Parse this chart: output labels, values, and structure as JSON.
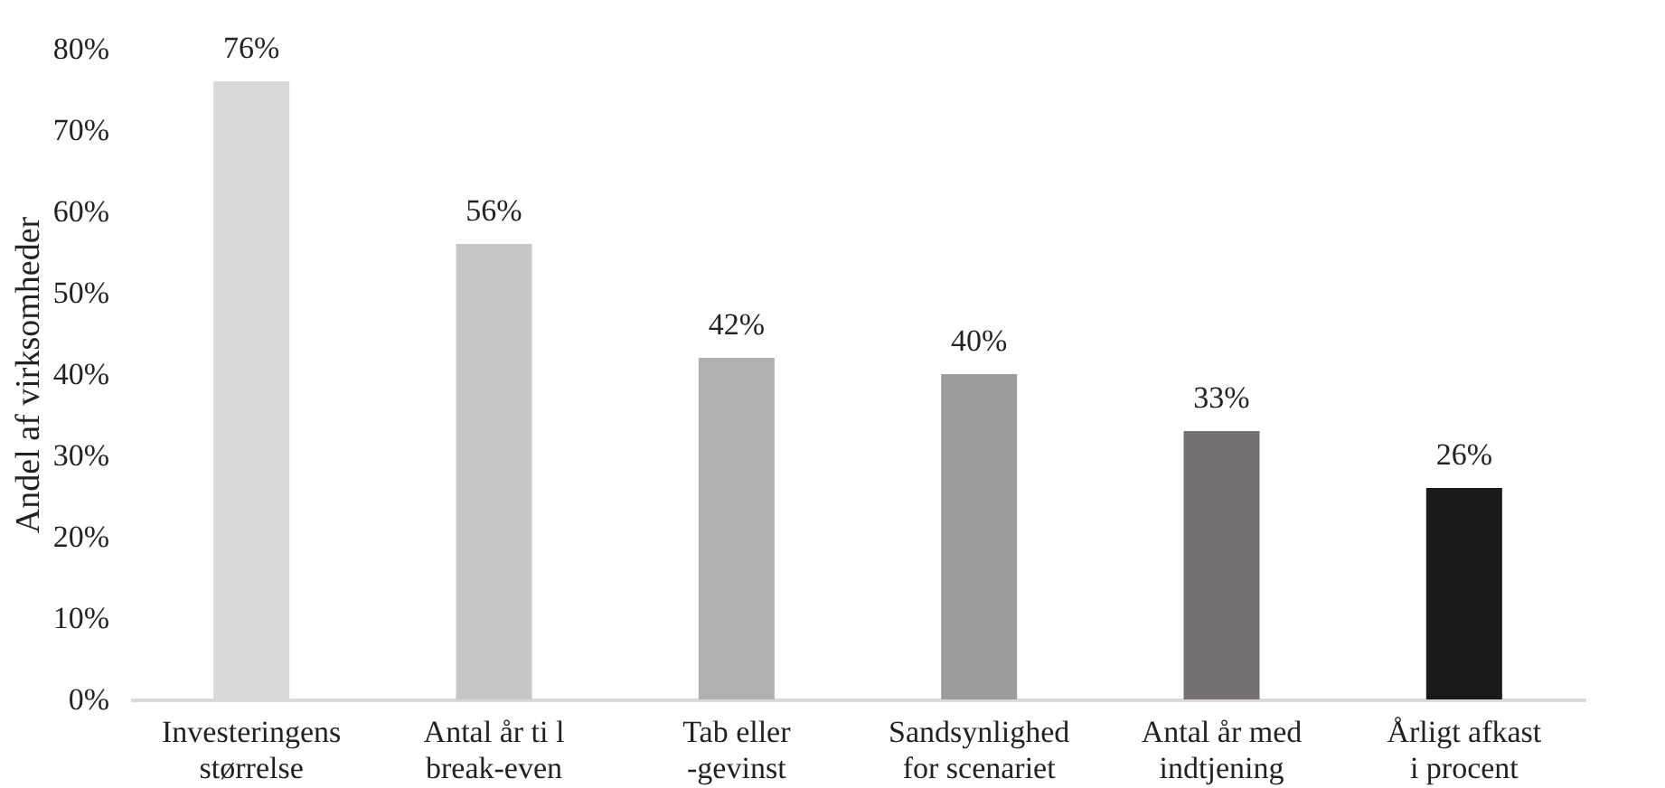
{
  "chart_data": {
    "type": "bar",
    "ylabel": "Andel af virksomheder",
    "categories": [
      "Investeringens\nstørrelse",
      "Antal år ti l\nbreak-even",
      "Tab eller\n-gevinst",
      "Sandsynlighed\nfor scenariet",
      "Antal år med\nindtjening",
      "Årligt afkast\ni procent"
    ],
    "values": [
      76,
      56,
      42,
      40,
      33,
      26
    ],
    "value_labels": [
      "76%",
      "56%",
      "42%",
      "40%",
      "33%",
      "26%"
    ],
    "colors": [
      "#d9d9d9",
      "#c6c6c6",
      "#b0b0b0",
      "#9c9c9c",
      "#767171",
      "#1a1a1a"
    ],
    "ylim": [
      0,
      80
    ],
    "yticks": [
      {
        "value": 0,
        "label": "0%"
      },
      {
        "value": 10,
        "label": "10%"
      },
      {
        "value": 20,
        "label": "20%"
      },
      {
        "value": 30,
        "label": "30%"
      },
      {
        "value": 40,
        "label": "40%"
      },
      {
        "value": 50,
        "label": "50%"
      },
      {
        "value": 60,
        "label": "60%"
      },
      {
        "value": 70,
        "label": "70%"
      },
      {
        "value": 80,
        "label": "80%"
      }
    ],
    "grid": false
  }
}
